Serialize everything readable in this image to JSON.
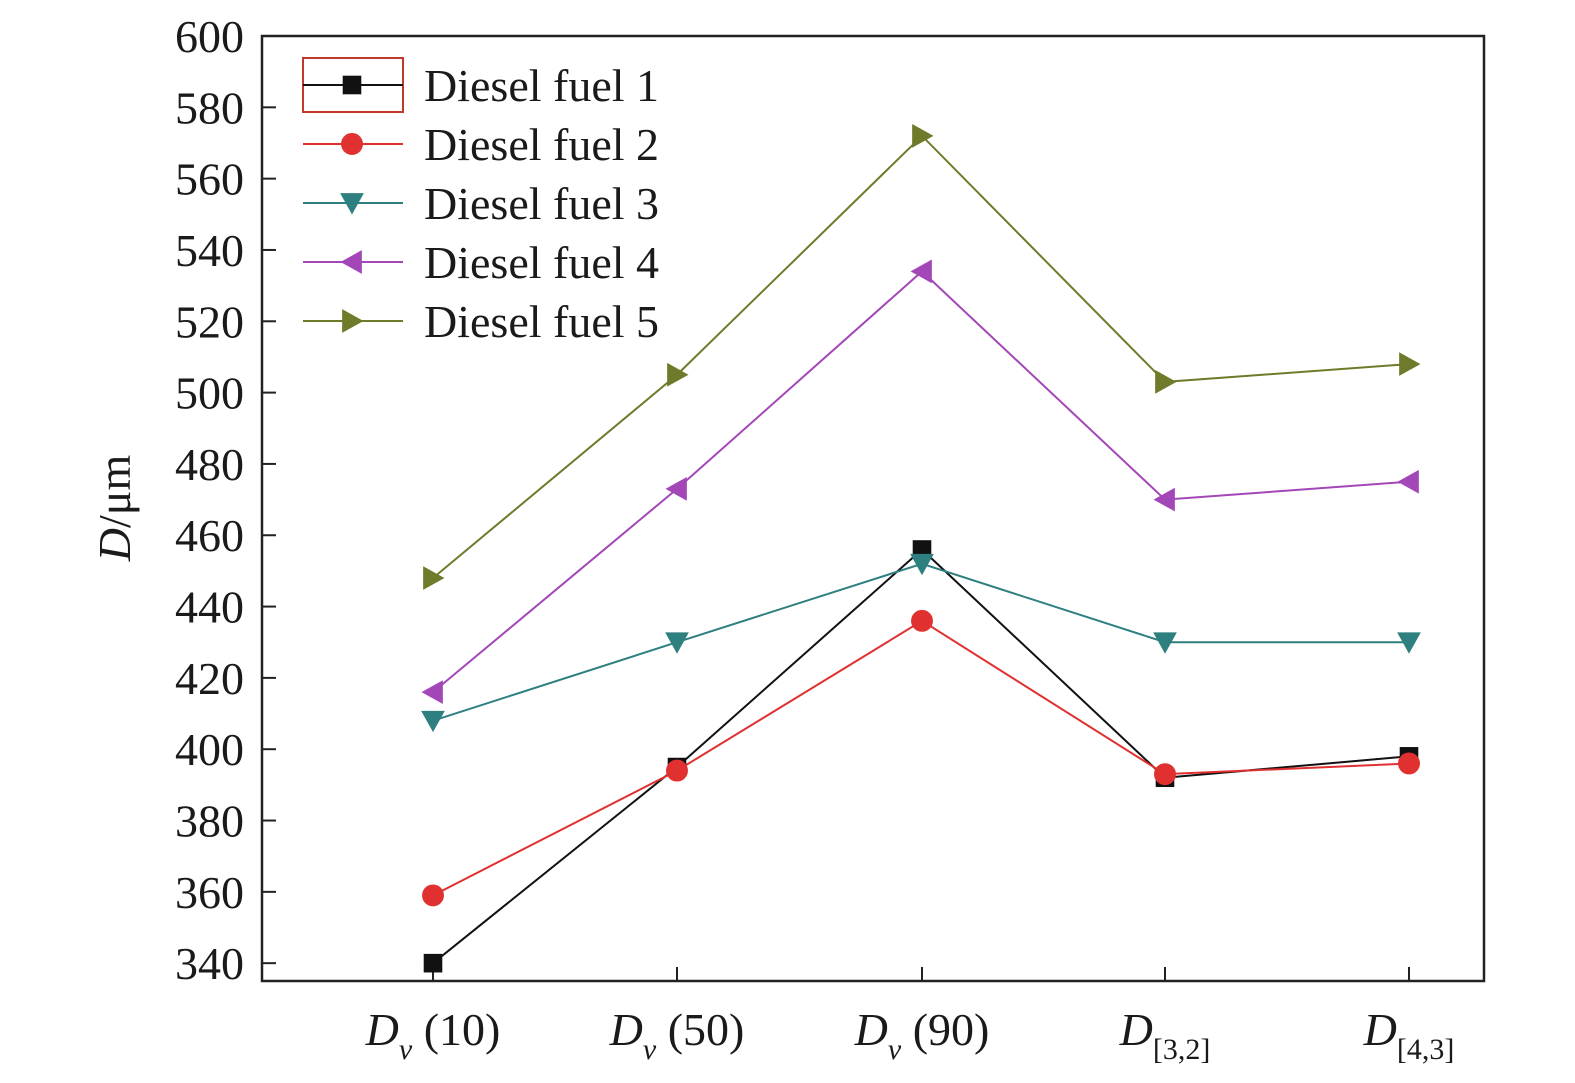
{
  "chart_data": {
    "type": "line",
    "xlabel": "",
    "ylabel": {
      "italic": "D",
      "rest": "/μm"
    },
    "ylim": [
      335,
      600
    ],
    "yticks": [
      340,
      360,
      380,
      400,
      420,
      440,
      460,
      480,
      500,
      520,
      540,
      560,
      580,
      600
    ],
    "categories": [
      {
        "main": "D",
        "sub": "v",
        "suffix": " (10)"
      },
      {
        "main": "D",
        "sub": "v",
        "suffix": " (50)"
      },
      {
        "main": "D",
        "sub": "v",
        "suffix": " (90)"
      },
      {
        "main": "D",
        "sub": "[3,2]",
        "suffix": ""
      },
      {
        "main": "D",
        "sub": "[4,3]",
        "suffix": ""
      }
    ],
    "series": [
      {
        "name": "Diesel fuel 1",
        "color": "#111111",
        "marker": "square",
        "values": [
          340,
          395,
          456,
          392,
          398
        ]
      },
      {
        "name": "Diesel fuel 2",
        "color": "#e03030",
        "marker": "circle",
        "values": [
          359,
          394,
          436,
          393,
          396
        ]
      },
      {
        "name": "Diesel fuel 3",
        "color": "#2e7f7f",
        "marker": "triangle-down",
        "values": [
          408,
          430,
          452,
          430,
          430
        ]
      },
      {
        "name": "Diesel fuel 4",
        "color": "#a347b8",
        "marker": "triangle-left",
        "values": [
          416,
          473,
          534,
          470,
          475
        ]
      },
      {
        "name": "Diesel fuel 5",
        "color": "#6f7a2a",
        "marker": "triangle-right",
        "values": [
          448,
          505,
          572,
          503,
          508
        ]
      }
    ],
    "legend": {
      "placement": "top-left",
      "highlight_border_color": "#c0392b"
    },
    "grid": false
  }
}
